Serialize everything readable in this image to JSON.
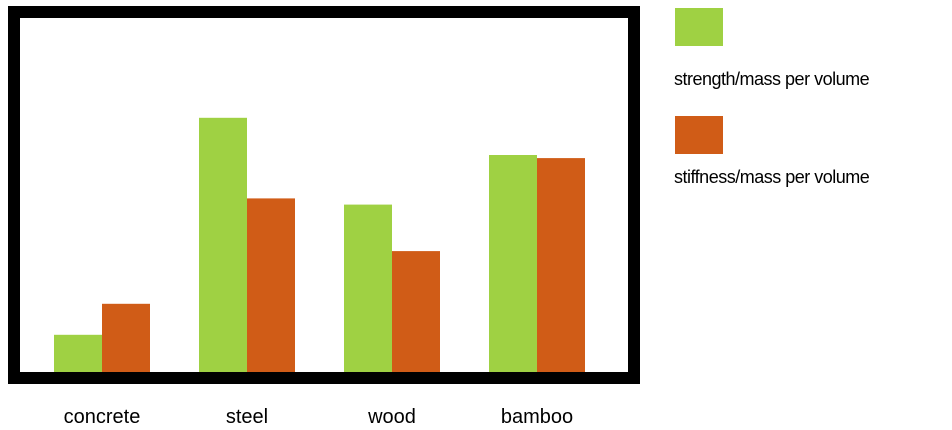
{
  "chart_data": {
    "type": "bar",
    "title": "",
    "xlabel": "",
    "ylabel": "",
    "categories": [
      "concrete",
      "steel",
      "wood",
      "bamboo"
    ],
    "series": [
      {
        "name": "strength/mass per volume",
        "color": "#9fd143",
        "values": [
          0.12,
          0.82,
          0.54,
          0.7
        ]
      },
      {
        "name": "stiffness/mass per volume",
        "color": "#d05c17",
        "values": [
          0.22,
          0.56,
          0.39,
          0.69
        ]
      }
    ],
    "ylim": [
      0,
      1
    ],
    "grid": false,
    "legend": "right"
  }
}
